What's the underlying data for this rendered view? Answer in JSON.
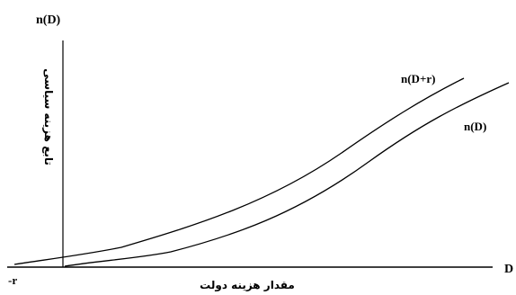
{
  "diagram": {
    "y_axis_top_label": "n(D)",
    "y_axis_title": "تابع هزینه سیاسی",
    "x_axis_end_label": "D",
    "x_axis_title": "مقدار هزینه دولت",
    "origin_offset_label": "-r",
    "curves": [
      {
        "name": "n(D+r)",
        "stroke": "#000000"
      },
      {
        "name": "n(D)",
        "stroke": "#000000"
      }
    ]
  }
}
